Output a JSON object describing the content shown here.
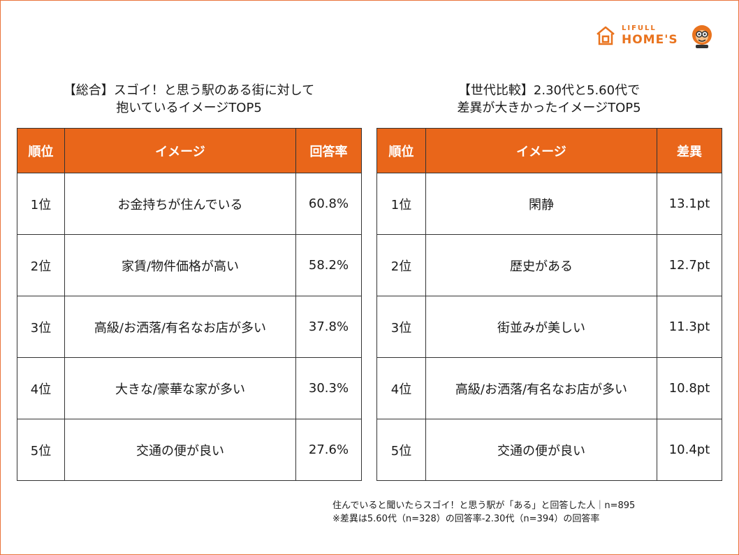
{
  "brand": {
    "line1": "LIFULL",
    "line2": "HOME'S",
    "accent": "#e9731e"
  },
  "left": {
    "title_line1": "【総合】スゴイ！と思う駅のある街に対して",
    "title_line2": "抱いているイメージTOP5",
    "headers": [
      "順位",
      "イメージ",
      "回答率"
    ],
    "rows": [
      [
        "1位",
        "お金持ちが住んでいる",
        "60.8%"
      ],
      [
        "2位",
        "家賃/物件価格が高い",
        "58.2%"
      ],
      [
        "3位",
        "高級/お洒落/有名なお店が多い",
        "37.8%"
      ],
      [
        "4位",
        "大きな/豪華な家が多い",
        "30.3%"
      ],
      [
        "5位",
        "交通の便が良い",
        "27.6%"
      ]
    ]
  },
  "right": {
    "title_line1": "【世代比較】2.30代と5.60代で",
    "title_line2": "差異が大きかったイメージTOP5",
    "headers": [
      "順位",
      "イメージ",
      "差異"
    ],
    "rows": [
      [
        "1位",
        "閑静",
        "13.1pt"
      ],
      [
        "2位",
        "歴史がある",
        "12.7pt"
      ],
      [
        "3位",
        "街並みが美しい",
        "11.3pt"
      ],
      [
        "4位",
        "高級/お洒落/有名なお店が多い",
        "10.8pt"
      ],
      [
        "5位",
        "交通の便が良い",
        "10.4pt"
      ]
    ]
  },
  "notes": {
    "line1": "住んでいると聞いたらスゴイ！と思う駅が「ある」と回答した人｜n=895",
    "line2": "※差異は5.60代（n=328）の回答率-2.30代（n=394）の回答率"
  },
  "colors": {
    "header_bg": "#e9661a",
    "frame": "#e9733a"
  }
}
